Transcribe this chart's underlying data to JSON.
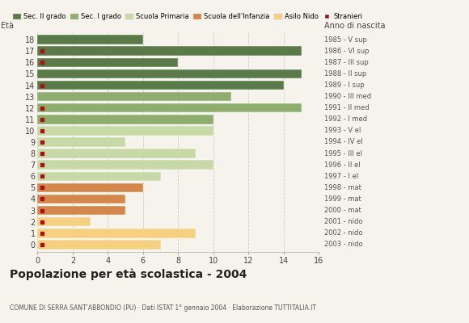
{
  "ages": [
    18,
    17,
    16,
    15,
    14,
    13,
    12,
    11,
    10,
    9,
    8,
    7,
    6,
    5,
    4,
    3,
    2,
    1,
    0
  ],
  "years": [
    "1985 - V sup",
    "1986 - VI sup",
    "1987 - III sup",
    "1988 - II sup",
    "1989 - I sup",
    "1990 - III med",
    "1991 - II med",
    "1992 - I med",
    "1993 - V el",
    "1994 - IV el",
    "1995 - III el",
    "1996 - II el",
    "1997 - I el",
    "1998 - mat",
    "1999 - mat",
    "2000 - mat",
    "2001 - nido",
    "2002 - nido",
    "2003 - nido"
  ],
  "values": [
    6,
    15,
    8,
    15,
    14,
    11,
    15,
    10,
    10,
    5,
    9,
    10,
    7,
    6,
    5,
    5,
    3,
    9,
    7
  ],
  "categories": [
    "Sec. II grado",
    "Sec. I grado",
    "Scuola Primaria",
    "Scuola dell'Infanzia",
    "Asilo Nido"
  ],
  "bar_colors_per_age": [
    "#5a7a4a",
    "#5a7a4a",
    "#5a7a4a",
    "#5a7a4a",
    "#5a7a4a",
    "#8fad6e",
    "#8fad6e",
    "#8fad6e",
    "#c8d9a8",
    "#c8d9a8",
    "#c8d9a8",
    "#c8d9a8",
    "#c8d9a8",
    "#d4874a",
    "#d4874a",
    "#d4874a",
    "#f5d080",
    "#f5d080",
    "#f5d080"
  ],
  "legend_colors": [
    "#5a7a4a",
    "#8fad6e",
    "#c8d9a8",
    "#d4874a",
    "#f5d080",
    "#aa1111"
  ],
  "stranieri_ages": [
    17,
    16,
    14,
    12,
    11,
    10,
    9,
    8,
    7,
    6,
    5,
    4,
    3,
    2,
    1,
    0
  ],
  "title": "Popolazione per età scolastica - 2004",
  "subtitle": "COMUNE DI SERRA SANT'ABBONDIO (PU) · Dati ISTAT 1° gennaio 2004 · Elaborazione TUTTITALIA.IT",
  "ylabel_left": "Età",
  "ylabel_right": "Anno di nascita",
  "xlim": [
    0,
    16
  ],
  "xticks": [
    0,
    2,
    4,
    6,
    8,
    10,
    12,
    14,
    16
  ],
  "background_color": "#f5f3ec"
}
